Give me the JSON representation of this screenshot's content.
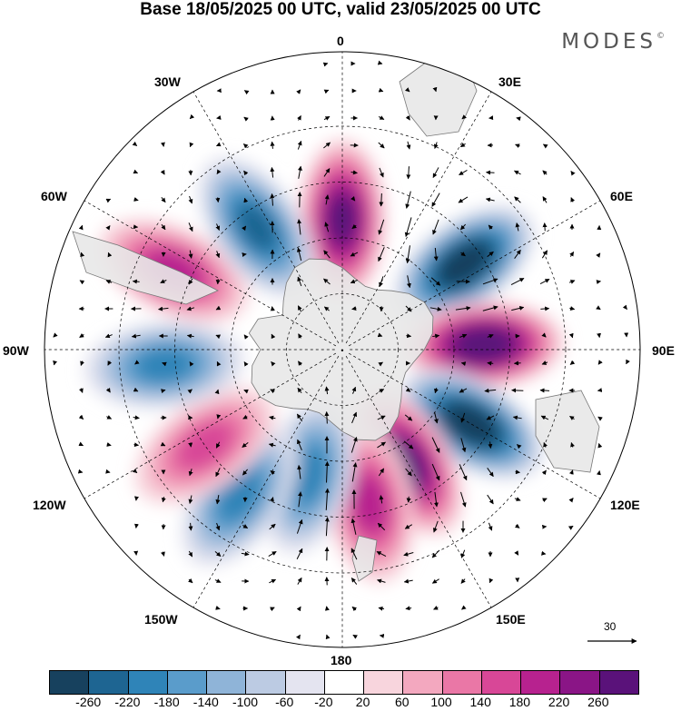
{
  "title": "Base 18/05/2025 00 UTC, valid 23/05/2025 00 UTC",
  "brand": "MODES",
  "brand_mark": "©",
  "longitude_labels": {
    "top": "0",
    "lon30e": "30E",
    "lon60e": "60E",
    "lon90e": "90E",
    "lon120e": "120E",
    "lon150e": "150E",
    "bottom": "180",
    "lon150w": "150W",
    "lon120w": "120W",
    "lon90w": "90W",
    "lon60w": "60W",
    "lon30w": "30W"
  },
  "reference_vector": "30",
  "colorbar": {
    "ticks": [
      "-260",
      "-220",
      "-180",
      "-140",
      "-100",
      "-60",
      "-20",
      "20",
      "60",
      "100",
      "140",
      "180",
      "220",
      "260"
    ],
    "colors": [
      "#17415e",
      "#1e6592",
      "#2f84b8",
      "#5a9ccb",
      "#8fb4d8",
      "#bccbe3",
      "#e4e4f0",
      "#ffffff",
      "#f8d5dd",
      "#f3a8bf",
      "#ea77a6",
      "#d84797",
      "#b7228f",
      "#8a1586",
      "#5a127a"
    ]
  },
  "anomaly_centers_dam": [
    {
      "lon": 0,
      "lat": -55,
      "sign": "positive",
      "level": 240
    },
    {
      "lon": 55,
      "lat": -50,
      "sign": "negative",
      "level": -260
    },
    {
      "lon": 88,
      "lat": -52,
      "sign": "positive",
      "level": 260
    },
    {
      "lon": 120,
      "lat": -50,
      "sign": "negative",
      "level": -260
    },
    {
      "lon": 150,
      "lat": -55,
      "sign": "positive",
      "level": 220
    },
    {
      "lon": 170,
      "lat": -48,
      "sign": "positive",
      "level": 140
    },
    {
      "lon": -165,
      "lat": -55,
      "sign": "negative",
      "level": -160
    },
    {
      "lon": -145,
      "lat": -42,
      "sign": "negative",
      "level": -140
    },
    {
      "lon": -125,
      "lat": -45,
      "sign": "positive",
      "level": 120
    },
    {
      "lon": -95,
      "lat": -42,
      "sign": "negative",
      "level": -160
    },
    {
      "lon": -65,
      "lat": -40,
      "sign": "positive",
      "level": 140
    },
    {
      "lon": -35,
      "lat": -50,
      "sign": "negative",
      "level": -180
    }
  ]
}
